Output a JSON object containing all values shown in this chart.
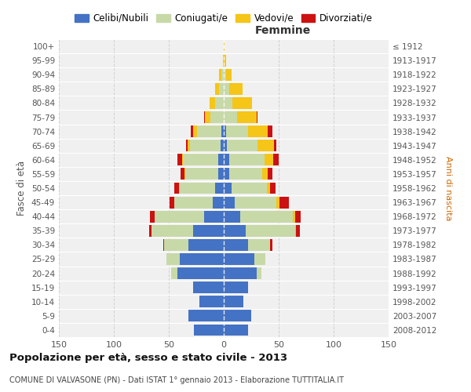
{
  "age_groups": [
    "0-4",
    "5-9",
    "10-14",
    "15-19",
    "20-24",
    "25-29",
    "30-34",
    "35-39",
    "40-44",
    "45-49",
    "50-54",
    "55-59",
    "60-64",
    "65-69",
    "70-74",
    "75-79",
    "80-84",
    "85-89",
    "90-94",
    "95-99",
    "100+"
  ],
  "years_labels": [
    "2008-2012",
    "2003-2007",
    "1998-2002",
    "1993-1997",
    "1988-1992",
    "1983-1987",
    "1978-1982",
    "1973-1977",
    "1968-1972",
    "1963-1967",
    "1958-1962",
    "1953-1957",
    "1948-1952",
    "1943-1947",
    "1938-1942",
    "1933-1937",
    "1928-1932",
    "1923-1927",
    "1918-1922",
    "1913-1917",
    "≤ 1912"
  ],
  "male": {
    "celibe": [
      27,
      32,
      22,
      28,
      42,
      40,
      32,
      28,
      18,
      10,
      8,
      5,
      5,
      3,
      2,
      0,
      0,
      0,
      0,
      0,
      0
    ],
    "coniugato": [
      0,
      0,
      0,
      0,
      6,
      12,
      22,
      38,
      45,
      35,
      32,
      30,
      32,
      28,
      22,
      12,
      8,
      4,
      2,
      0,
      0
    ],
    "vedovo": [
      0,
      0,
      0,
      0,
      0,
      0,
      0,
      0,
      0,
      0,
      1,
      1,
      1,
      2,
      4,
      5,
      5,
      4,
      2,
      1,
      0
    ],
    "divorziato": [
      0,
      0,
      0,
      0,
      0,
      0,
      1,
      2,
      4,
      4,
      4,
      3,
      4,
      1,
      2,
      1,
      0,
      0,
      0,
      0,
      0
    ]
  },
  "female": {
    "nubile": [
      22,
      25,
      18,
      22,
      30,
      28,
      22,
      20,
      15,
      10,
      7,
      5,
      5,
      3,
      2,
      0,
      0,
      0,
      0,
      0,
      0
    ],
    "coniugata": [
      0,
      0,
      0,
      0,
      4,
      10,
      20,
      45,
      48,
      38,
      32,
      30,
      32,
      28,
      20,
      12,
      8,
      5,
      2,
      0,
      0
    ],
    "vedova": [
      0,
      0,
      0,
      0,
      0,
      0,
      0,
      1,
      2,
      3,
      3,
      5,
      8,
      15,
      18,
      18,
      18,
      12,
      5,
      2,
      1
    ],
    "divorziata": [
      0,
      0,
      0,
      0,
      0,
      0,
      2,
      3,
      5,
      8,
      5,
      4,
      5,
      2,
      4,
      1,
      0,
      0,
      0,
      0,
      0
    ]
  },
  "colors": {
    "celibe": "#4472C4",
    "coniugato": "#c8d9a8",
    "vedovo": "#f5c518",
    "divorziato": "#cc1111"
  },
  "xlim": 150,
  "title": "Popolazione per età, sesso e stato civile - 2013",
  "subtitle": "COMUNE DI VALVASONE (PN) - Dati ISTAT 1° gennaio 2013 - Elaborazione TUTTITALIA.IT",
  "ylabel_left": "Fasce di età",
  "ylabel_right": "Anni di nascita",
  "legend_labels": [
    "Celibi/Nubili",
    "Coniugati/e",
    "Vedovi/e",
    "Divorziati/e"
  ],
  "bg_color": "#f0f0f0",
  "grid_color": "#cccccc"
}
